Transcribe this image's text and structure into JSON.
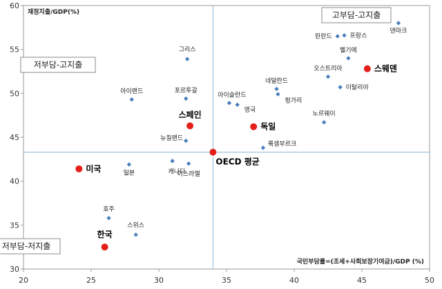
{
  "chart_data": {
    "type": "scatter",
    "title": "",
    "xlabel": "국민부담률=(조세+사회보장기여금)/GDP  (%)",
    "ylabel": "재정지출/GDP(%)",
    "xlim": [
      20,
      50
    ],
    "ylim": [
      30,
      60
    ],
    "x_ticks": [
      "20",
      "25",
      "30",
      "35",
      "40",
      "45",
      "50"
    ],
    "y_ticks": [
      "30",
      "35",
      "40",
      "45",
      "50",
      "55",
      "60"
    ],
    "grid": false,
    "reference_lines": {
      "x": 34.0,
      "y": 43.3
    },
    "quadrant_labels": [
      "고부담-고지출",
      "저부담-고지출",
      "저부담-저지출"
    ],
    "colors": {
      "regular_marker": "#4a7ebb",
      "highlight_marker": "#e3201b",
      "reference_line": "#8db4d8"
    },
    "points": [
      {
        "label": "덴마크",
        "x": 47.7,
        "y": 58.0,
        "highlight": false
      },
      {
        "label": "핀란드",
        "x": 43.2,
        "y": 56.5,
        "highlight": false
      },
      {
        "label": "프랑스",
        "x": 43.7,
        "y": 56.6,
        "highlight": false
      },
      {
        "label": "벨기에",
        "x": 44.0,
        "y": 54.0,
        "highlight": false
      },
      {
        "label": "스웨덴",
        "x": 45.4,
        "y": 52.8,
        "highlight": true
      },
      {
        "label": "오스트리아",
        "x": 42.5,
        "y": 51.9,
        "highlight": false
      },
      {
        "label": "이탈리아",
        "x": 43.4,
        "y": 50.7,
        "highlight": false
      },
      {
        "label": "네덜란드",
        "x": 38.7,
        "y": 50.5,
        "highlight": false
      },
      {
        "label": "헝가리",
        "x": 38.8,
        "y": 49.9,
        "highlight": false
      },
      {
        "label": "아이슬란드",
        "x": 35.2,
        "y": 48.9,
        "highlight": false
      },
      {
        "label": "영국",
        "x": 35.8,
        "y": 48.7,
        "highlight": false
      },
      {
        "label": "그리스",
        "x": 32.1,
        "y": 53.9,
        "highlight": false
      },
      {
        "label": "포르투갈",
        "x": 32.0,
        "y": 49.4,
        "highlight": false
      },
      {
        "label": "아이랜드",
        "x": 28.0,
        "y": 49.3,
        "highlight": false
      },
      {
        "label": "스페인",
        "x": 32.3,
        "y": 46.3,
        "highlight": true
      },
      {
        "label": "독일",
        "x": 37.0,
        "y": 46.2,
        "highlight": true
      },
      {
        "label": "노르웨이",
        "x": 42.2,
        "y": 46.7,
        "highlight": false
      },
      {
        "label": "룩셈부르크",
        "x": 37.7,
        "y": 43.8,
        "highlight": false
      },
      {
        "label": "뉴질랜드",
        "x": 32.0,
        "y": 44.6,
        "highlight": false
      },
      {
        "label": "OECD 평균",
        "x": 34.0,
        "y": 43.3,
        "highlight": true
      },
      {
        "label": "캐나다",
        "x": 31.0,
        "y": 42.3,
        "highlight": false
      },
      {
        "label": "이스라엘",
        "x": 32.2,
        "y": 42.0,
        "highlight": false
      },
      {
        "label": "일본",
        "x": 27.8,
        "y": 41.9,
        "highlight": false
      },
      {
        "label": "미국",
        "x": 24.1,
        "y": 41.4,
        "highlight": true
      },
      {
        "label": "호주",
        "x": 26.3,
        "y": 35.8,
        "highlight": false
      },
      {
        "label": "스위스",
        "x": 28.3,
        "y": 33.9,
        "highlight": false
      },
      {
        "label": "한국",
        "x": 26.0,
        "y": 32.5,
        "highlight": true
      }
    ]
  }
}
